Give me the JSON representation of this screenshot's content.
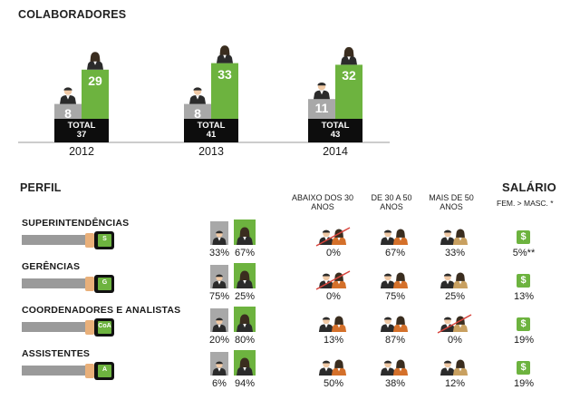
{
  "title": "COLABORADORES",
  "colors": {
    "male": "#a8a8a8",
    "female": "#6db33f",
    "total": "#0d0d0d"
  },
  "chart_data": {
    "type": "bar",
    "categories": [
      "2012",
      "2013",
      "2014"
    ],
    "series": [
      {
        "values": [
          8,
          8,
          11
        ]
      },
      {
        "values": [
          29,
          33,
          32
        ]
      }
    ],
    "totals": [
      {
        "label": "TOTAL",
        "value": "37"
      },
      {
        "label": "TOTAL",
        "value": "41"
      },
      {
        "label": "TOTAL",
        "value": "43"
      }
    ]
  },
  "perfil": {
    "title": "PERFIL",
    "salario_title": "SALÁRIO",
    "salario_sub": "FEM. > MASC. *",
    "age_headers": [
      "ABAIXO DOS 30 ANOS",
      "DE 30 A 50 ANOS",
      "MAIS DE 50 ANOS"
    ],
    "rows": [
      {
        "label": "SUPERINTENDÊNCIAS",
        "badge": "S",
        "male": "33%",
        "female": "67%",
        "ages": [
          "0%",
          "67%",
          "33%"
        ],
        "salary": "5%**"
      },
      {
        "label": "GERÊNCIAS",
        "badge": "G",
        "male": "75%",
        "female": "25%",
        "ages": [
          "0%",
          "75%",
          "25%"
        ],
        "salary": "13%"
      },
      {
        "label": "COORDENADORES E ANALISTAS",
        "badge": "CoA",
        "male": "20%",
        "female": "80%",
        "ages": [
          "13%",
          "87%",
          "0%"
        ],
        "salary": "19%"
      },
      {
        "label": "ASSISTENTES",
        "badge": "A",
        "male": "6%",
        "female": "94%",
        "ages": [
          "50%",
          "38%",
          "12%"
        ],
        "salary": "19%"
      }
    ]
  }
}
